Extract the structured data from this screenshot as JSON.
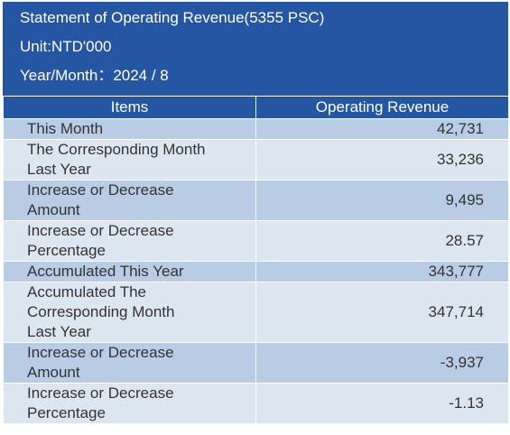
{
  "header": {
    "title": "Statement of Operating Revenue(5355 PSC)",
    "unit": "Unit:NTD'000",
    "period": "Year/Month：2024 / 8"
  },
  "table": {
    "columns": [
      "Items",
      "Operating Revenue"
    ],
    "rows": [
      [
        "This Month",
        "42,731"
      ],
      [
        "The Corresponding Month Last Year",
        "33,236"
      ],
      [
        "Increase or Decrease Amount",
        "9,495"
      ],
      [
        "Increase or Decrease Percentage",
        "28.57"
      ],
      [
        "Accumulated This Year",
        "343,777"
      ],
      [
        "Accumulated The Corresponding Month Last Year",
        "347,714"
      ],
      [
        "Increase or Decrease Amount",
        "-3,937"
      ],
      [
        "Increase or Decrease Percentage",
        "-1.13"
      ]
    ]
  }
}
